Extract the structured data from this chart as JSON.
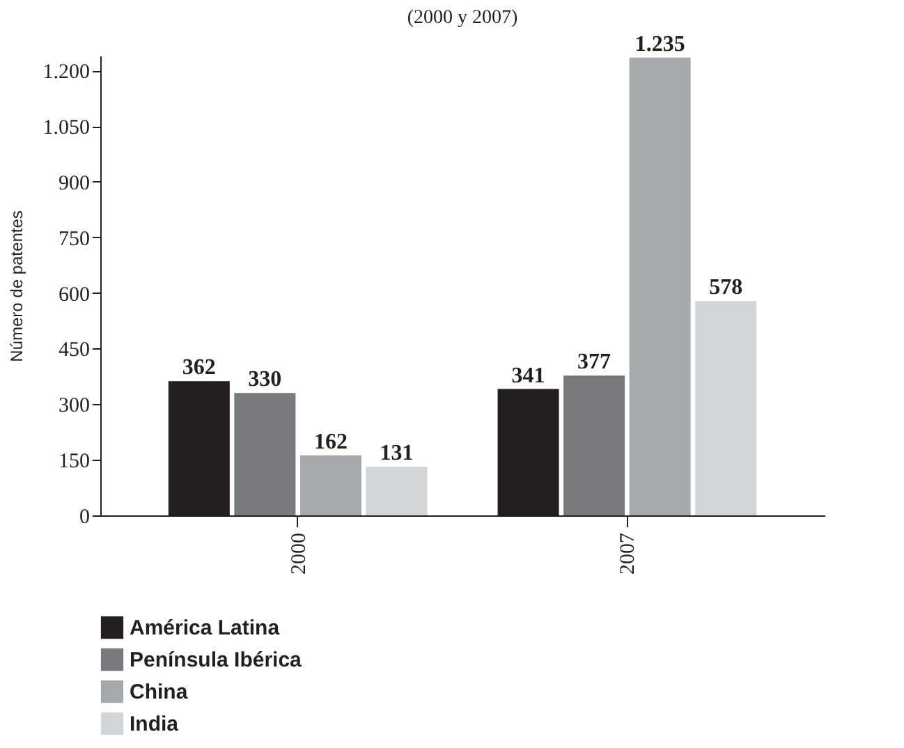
{
  "chart_data": {
    "type": "bar",
    "subtitle": "(2000 y 2007)",
    "ylabel": "Número de patentes",
    "categories": [
      "2000",
      "2007"
    ],
    "series": [
      {
        "name": "América Latina",
        "color": "#231f20",
        "values": [
          362,
          341
        ],
        "value_labels": [
          "362",
          "341"
        ]
      },
      {
        "name": "Península Ibérica",
        "color": "#7a7a7d",
        "values": [
          330,
          377
        ],
        "value_labels": [
          "330",
          "377"
        ]
      },
      {
        "name": "China",
        "color": "#a7a8ab",
        "values": [
          162,
          1235
        ],
        "value_labels": [
          "162",
          "1.235"
        ]
      },
      {
        "name": "India",
        "color": "#d3d4d5",
        "values": [
          131,
          578
        ],
        "value_labels": [
          "131",
          "578"
        ]
      }
    ],
    "ylim": [
      0,
      1240
    ],
    "yticks": [
      0,
      150,
      300,
      450,
      600,
      750,
      900,
      {
        "value": 1050,
        "label": "1.050"
      },
      {
        "value": 1200,
        "label": "1.200"
      }
    ],
    "grid": false,
    "legend": "bottom"
  }
}
